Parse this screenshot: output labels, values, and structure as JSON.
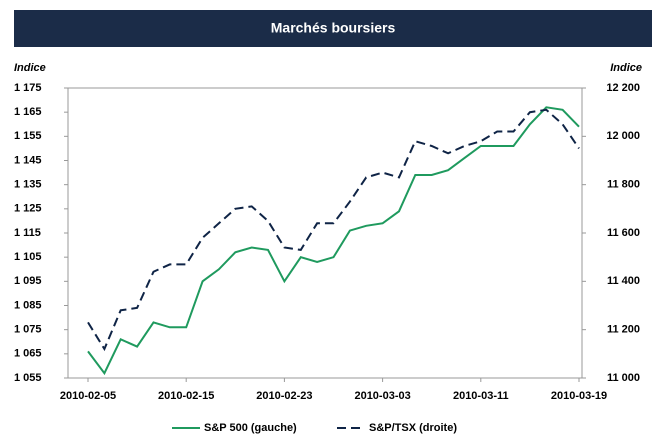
{
  "chart_data": {
    "type": "line",
    "title": "Marchés boursiers",
    "ylabel": "Indice",
    "y2label": "Indice",
    "categories": [
      "2010-02-05",
      null,
      null,
      null,
      null,
      null,
      "2010-02-15",
      null,
      null,
      null,
      null,
      null,
      "2010-02-23",
      null,
      null,
      null,
      null,
      null,
      "2010-03-03",
      null,
      null,
      null,
      null,
      null,
      "2010-03-11",
      null,
      null,
      null,
      null,
      null,
      "2010-03-19"
    ],
    "series": [
      {
        "name": "S&P 500 (gauche)",
        "color": "#1f9a5e",
        "dash": false,
        "values": [
          1066,
          1057,
          1071,
          1068,
          1078,
          1076,
          1076,
          1095,
          1100,
          1107,
          1109,
          1108,
          1095,
          1105,
          1103,
          1105,
          1116,
          1118,
          1119,
          1124,
          1139,
          1139,
          1141,
          1146,
          1151,
          1151,
          1151,
          1160,
          1167,
          1166,
          1159
        ]
      },
      {
        "name": "S&P/TSX (droite)",
        "color": "#0f2446",
        "dash": true,
        "axis": "y2",
        "values": [
          11230,
          11120,
          11280,
          11290,
          11440,
          11470,
          11470,
          11580,
          11640,
          11700,
          11710,
          11650,
          11540,
          11530,
          11640,
          11640,
          11730,
          11830,
          11850,
          11830,
          11980,
          11960,
          11930,
          11960,
          11980,
          12020,
          12020,
          12100,
          12110,
          12050,
          11950
        ]
      }
    ],
    "ylim": [
      1055,
      1175
    ],
    "yticks": [
      {
        "value": 1055,
        "label": "1 055"
      },
      {
        "value": 1065,
        "label": "1 065"
      },
      {
        "value": 1075,
        "label": "1 075"
      },
      {
        "value": 1085,
        "label": "1 085"
      },
      {
        "value": 1095,
        "label": "1 095"
      },
      {
        "value": 1105,
        "label": "1 105"
      },
      {
        "value": 1115,
        "label": "1 115"
      },
      {
        "value": 1125,
        "label": "1 125"
      },
      {
        "value": 1135,
        "label": "1 135"
      },
      {
        "value": 1145,
        "label": "1 145"
      },
      {
        "value": 1155,
        "label": "1 155"
      },
      {
        "value": 1165,
        "label": "1 165"
      },
      {
        "value": 1175,
        "label": "1 175"
      }
    ],
    "y2lim": [
      11000,
      12200
    ],
    "y2ticks": [
      {
        "value": 11000,
        "label": "11 000"
      },
      {
        "value": 11200,
        "label": "11 200"
      },
      {
        "value": 11400,
        "label": "11 400"
      },
      {
        "value": 11600,
        "label": "11 600"
      },
      {
        "value": 11800,
        "label": "11 800"
      },
      {
        "value": 12000,
        "label": "12 000"
      },
      {
        "value": 12200,
        "label": "12 200"
      }
    ],
    "legend": "bottom",
    "grid": false
  }
}
